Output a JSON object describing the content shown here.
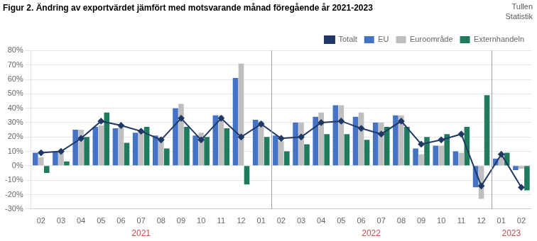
{
  "chart_data": {
    "type": "bar",
    "title": "Figur 2. Ändring av exportvärdet jämfört med motsvarande månad föregående år 2021-2023",
    "categories": [
      "02",
      "03",
      "04",
      "05",
      "06",
      "07",
      "08",
      "09",
      "10",
      "11",
      "12",
      "01",
      "02",
      "03",
      "04",
      "05",
      "06",
      "07",
      "08",
      "09",
      "10",
      "11",
      "12",
      "01",
      "02"
    ],
    "series": [
      {
        "name": "EU",
        "color": "#4472C4",
        "values": [
          9,
          10,
          25,
          27,
          26,
          23,
          21,
          40,
          21,
          35,
          61,
          32,
          21,
          30,
          34,
          42,
          34,
          30,
          35,
          12,
          14,
          10,
          -15,
          5,
          -3
        ]
      },
      {
        "name": "Euroområde",
        "color": "#BFBFBF",
        "values": [
          6,
          10,
          25,
          28,
          28,
          23,
          20,
          43,
          23,
          35,
          71,
          31,
          17,
          30,
          37,
          42,
          37,
          30,
          35,
          8,
          14,
          9,
          -23,
          6,
          -2
        ]
      },
      {
        "name": "Externhandeln",
        "color": "#1F7B5E",
        "values": [
          -5,
          3,
          20,
          37,
          16,
          27,
          12,
          27,
          20,
          26,
          -13,
          20,
          10,
          15,
          22,
          22,
          18,
          27,
          27,
          20,
          22,
          27,
          49,
          9,
          -17
        ]
      },
      {
        "name": "Totalt",
        "type": "line",
        "color": "#1F3864",
        "marker": "diamond",
        "values": [
          9,
          10,
          19,
          31,
          28,
          24,
          18,
          33,
          18,
          33,
          20,
          29,
          19,
          20,
          30,
          31,
          26,
          22,
          31,
          15,
          18,
          22,
          -14,
          8,
          -15
        ]
      }
    ],
    "ylim": [
      -30,
      80
    ],
    "yticks": [
      {
        "value": -30,
        "label": "-30%"
      },
      {
        "value": -20,
        "label": "-20%"
      },
      {
        "value": -10,
        "label": "-10%"
      },
      {
        "value": 0,
        "label": "0%"
      },
      {
        "value": 10,
        "label": "10%"
      },
      {
        "value": 20,
        "label": "20%"
      },
      {
        "value": 30,
        "label": "30%"
      },
      {
        "value": 40,
        "label": "40%"
      },
      {
        "value": 50,
        "label": "50%"
      },
      {
        "value": 60,
        "label": "60%"
      },
      {
        "value": 70,
        "label": "70%"
      },
      {
        "value": 80,
        "label": "80%"
      }
    ],
    "grid": true,
    "legend": "upper right",
    "annotations": [
      {
        "text": "2021",
        "x": 5.0,
        "color": "#C0504D"
      },
      {
        "text": "2022",
        "x": 16.5,
        "color": "#C0504D"
      },
      {
        "text": "2023",
        "x": 23.5,
        "color": "#C0504D"
      },
      {
        "text": "Tullen\nStatistik"
      }
    ],
    "dividers": [
      11.5,
      22.5
    ]
  }
}
